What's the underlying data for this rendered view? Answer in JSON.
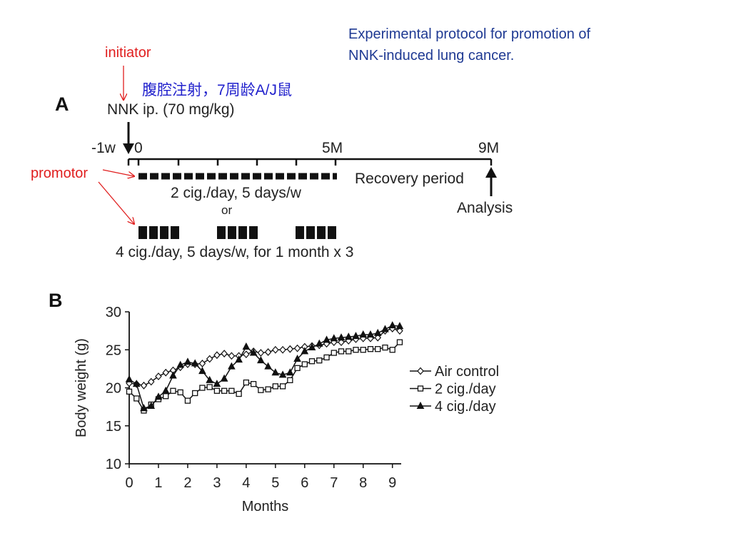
{
  "header": {
    "title_line1": "Experimental protocol for promotion of",
    "title_line2": "NNK-induced lung cancer."
  },
  "annotations": {
    "initiator": "initiator",
    "promotor": "promotor",
    "chinese_note": "腹腔注射，7周龄A/J鼠"
  },
  "panel_a": {
    "letter": "A",
    "nnk": "NNK ip. (70 mg/kg)",
    "tick_minus1w": "-1w",
    "tick_0": "0",
    "tick_5m": "5M",
    "tick_9m": "9M",
    "recovery": "Recovery period",
    "schedule1": "2 cig./day, 5 days/w",
    "or": "or",
    "analysis": "Analysis",
    "schedule2": "4 cig./day, 5 days/w, for 1 month x 3"
  },
  "chart_data": {
    "type": "line",
    "panel_letter": "B",
    "xlabel": "Months",
    "ylabel": "Body weight (g)",
    "xlim": [
      0,
      9.3
    ],
    "ylim": [
      10,
      30
    ],
    "xticks": [
      0,
      1,
      2,
      3,
      4,
      5,
      6,
      7,
      8,
      9
    ],
    "yticks": [
      10,
      15,
      20,
      25,
      30
    ],
    "legend_position": "right",
    "series": [
      {
        "name": "Air control",
        "marker": "diamond",
        "x": [
          0,
          0.25,
          0.5,
          0.75,
          1,
          1.25,
          1.5,
          1.75,
          2,
          2.25,
          2.5,
          2.75,
          3,
          3.25,
          3.5,
          3.75,
          4,
          4.25,
          4.5,
          4.75,
          5,
          5.25,
          5.5,
          5.75,
          6,
          6.25,
          6.5,
          6.75,
          7,
          7.25,
          7.5,
          7.75,
          8,
          8.25,
          8.5,
          8.75,
          9,
          9.25
        ],
        "y": [
          20.6,
          20.5,
          20.3,
          20.8,
          21.5,
          22.0,
          22.3,
          22.7,
          23.1,
          23.1,
          23.2,
          23.8,
          24.3,
          24.5,
          24.2,
          24.2,
          24.4,
          24.8,
          24.6,
          24.7,
          25.0,
          25.0,
          25.1,
          25.2,
          25.4,
          25.5,
          25.6,
          25.8,
          26.0,
          26.0,
          26.2,
          26.4,
          26.5,
          26.5,
          26.6,
          27.5,
          27.8,
          27.5
        ]
      },
      {
        "name": "2 cig./day",
        "marker": "square",
        "x": [
          0,
          0.25,
          0.5,
          0.75,
          1,
          1.25,
          1.5,
          1.75,
          2,
          2.25,
          2.5,
          2.75,
          3,
          3.25,
          3.5,
          3.75,
          4,
          4.25,
          4.5,
          4.75,
          5,
          5.25,
          5.5,
          5.75,
          6,
          6.25,
          6.5,
          6.75,
          7,
          7.25,
          7.5,
          7.75,
          8,
          8.25,
          8.5,
          8.75,
          9,
          9.25
        ],
        "y": [
          19.5,
          18.6,
          17.0,
          17.8,
          18.5,
          18.9,
          19.6,
          19.4,
          18.3,
          19.3,
          20.0,
          20.1,
          19.6,
          19.6,
          19.6,
          19.2,
          20.7,
          20.5,
          19.7,
          19.8,
          20.2,
          20.2,
          21.0,
          22.6,
          23.1,
          23.5,
          23.6,
          24.0,
          24.6,
          24.8,
          24.8,
          25.0,
          25.0,
          25.1,
          25.1,
          25.3,
          25.0,
          26.0
        ]
      },
      {
        "name": "4 cig./day",
        "marker": "triangle",
        "x": [
          0,
          0.25,
          0.5,
          0.75,
          1,
          1.25,
          1.5,
          1.75,
          2,
          2.25,
          2.5,
          2.75,
          3,
          3.25,
          3.5,
          3.75,
          4,
          4.25,
          4.5,
          4.75,
          5,
          5.25,
          5.5,
          5.75,
          6,
          6.25,
          6.5,
          6.75,
          7,
          7.25,
          7.5,
          7.75,
          8,
          8.25,
          8.5,
          8.75,
          9,
          9.25
        ],
        "y": [
          21.1,
          20.5,
          17.3,
          17.6,
          18.8,
          19.6,
          21.6,
          23.0,
          23.4,
          23.2,
          22.2,
          21.0,
          20.5,
          21.2,
          22.8,
          23.7,
          25.4,
          24.6,
          23.6,
          22.8,
          22.0,
          21.7,
          22.0,
          23.8,
          24.8,
          25.3,
          25.8,
          26.3,
          26.5,
          26.6,
          26.7,
          26.8,
          27.0,
          27.0,
          27.2,
          27.7,
          28.2,
          28.1
        ]
      }
    ]
  }
}
